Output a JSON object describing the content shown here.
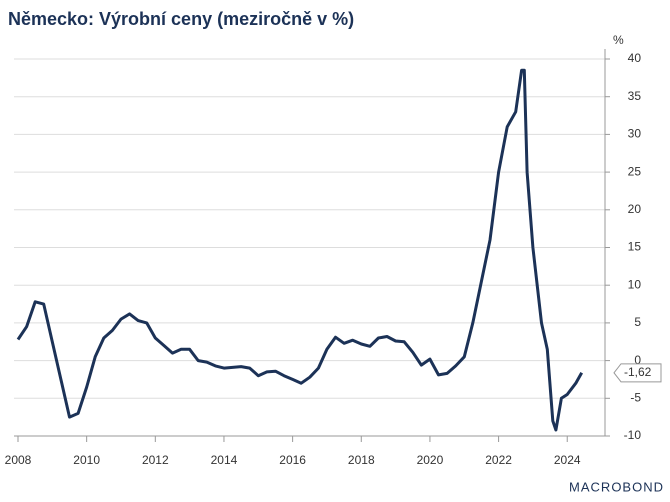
{
  "chart_data": {
    "type": "line",
    "title": "Německo: Výrobní ceny (meziročně v %)",
    "y_unit": "%",
    "brand": "MACROBOND",
    "x": [
      2008,
      2008.25,
      2008.5,
      2008.75,
      2009,
      2009.25,
      2009.5,
      2009.75,
      2010,
      2010.25,
      2010.5,
      2010.75,
      2011,
      2011.25,
      2011.5,
      2011.75,
      2012,
      2012.25,
      2012.5,
      2012.75,
      2013,
      2013.25,
      2013.5,
      2013.75,
      2014,
      2014.25,
      2014.5,
      2014.75,
      2015,
      2015.25,
      2015.5,
      2015.75,
      2016,
      2016.25,
      2016.5,
      2016.75,
      2017,
      2017.25,
      2017.5,
      2017.75,
      2018,
      2018.25,
      2018.5,
      2018.75,
      2019,
      2019.25,
      2019.5,
      2019.75,
      2020,
      2020.25,
      2020.5,
      2020.75,
      2021,
      2021.25,
      2021.5,
      2021.75,
      2022,
      2022.25,
      2022.5,
      2022.67,
      2022.75,
      2022.83,
      2023,
      2023.25,
      2023.42,
      2023.58,
      2023.67,
      2023.83,
      2024,
      2024.25,
      2024.42
    ],
    "series": [
      {
        "name": null,
        "color": "#1c3257",
        "values": [
          2.8,
          4.5,
          7.8,
          7.5,
          2.5,
          -2.5,
          -7.5,
          -7,
          -3.5,
          0.5,
          3,
          4,
          5.5,
          6.2,
          5.3,
          5,
          3,
          2,
          1,
          1.5,
          1.5,
          0,
          -0.2,
          -0.7,
          -1,
          -0.9,
          -0.8,
          -1,
          -2,
          -1.5,
          -1.4,
          -2,
          -2.5,
          -3,
          -2.2,
          -1,
          1.5,
          3.1,
          2.3,
          2.7,
          2.2,
          1.9,
          3,
          3.2,
          2.6,
          2.5,
          1.1,
          -0.6,
          0.2,
          -1.9,
          -1.7,
          -0.7,
          0.5,
          5,
          10.5,
          16,
          25,
          31,
          33,
          38.5,
          38.5,
          25,
          15,
          5,
          1.5,
          -8,
          -9.2,
          -5,
          -4.5,
          -3,
          -1.62
        ],
        "value_labels": [
          null,
          null,
          null,
          null,
          null,
          null,
          null,
          null,
          null,
          null,
          null,
          null,
          null,
          null,
          null,
          null,
          null,
          null,
          null,
          null,
          null,
          null,
          null,
          null,
          null,
          null,
          null,
          null,
          null,
          null,
          null,
          null,
          null,
          null,
          null,
          null,
          null,
          null,
          null,
          null,
          null,
          null,
          null,
          null,
          null,
          null,
          null,
          null,
          null,
          null,
          null,
          null,
          null,
          null,
          null,
          null,
          null,
          null,
          null,
          null,
          null,
          null,
          null,
          null,
          null,
          null,
          null,
          null,
          null,
          null,
          "-1,62"
        ]
      }
    ],
    "xlim": [
      2008,
      2025.1
    ],
    "xticks": [
      2008,
      2010,
      2012,
      2014,
      2016,
      2018,
      2020,
      2022,
      2024
    ],
    "ylim": [
      -10,
      40
    ],
    "yticks": [
      40,
      35,
      30,
      25,
      20,
      15,
      10,
      5,
      0,
      -5,
      -10
    ],
    "grid": true
  }
}
